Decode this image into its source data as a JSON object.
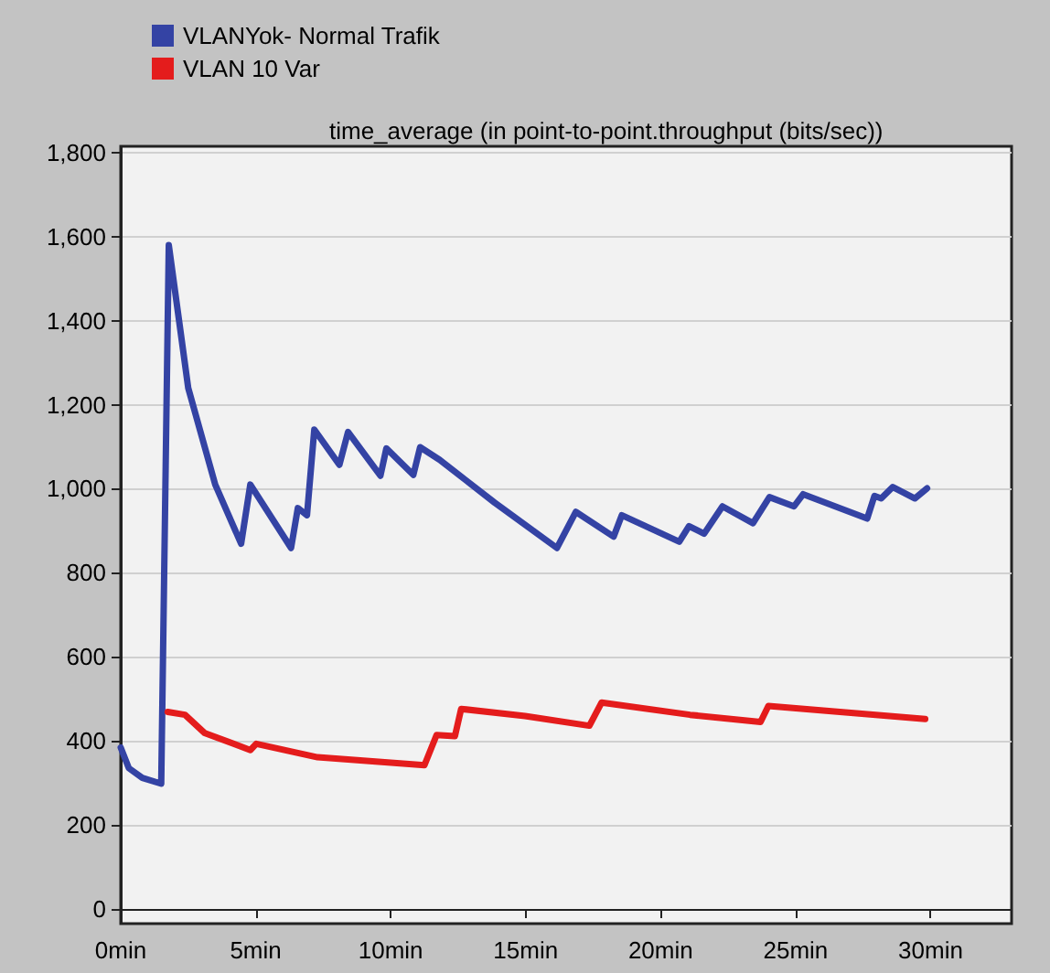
{
  "chart_data": {
    "type": "line",
    "title": "time_average (in point-to-point.throughput (bits/sec))",
    "xlim": [
      0,
      33
    ],
    "xticks": [
      {
        "value": 0,
        "label": "0min"
      },
      {
        "value": 5,
        "label": "5min"
      },
      {
        "value": 10,
        "label": "10min"
      },
      {
        "value": 15,
        "label": "15min"
      },
      {
        "value": 20,
        "label": "20min"
      },
      {
        "value": 25,
        "label": "25min"
      },
      {
        "value": 30,
        "label": "30min"
      }
    ],
    "ylim": [
      -35,
      1815
    ],
    "yticks": [
      {
        "value": 0,
        "label": "0"
      },
      {
        "value": 200,
        "label": "200"
      },
      {
        "value": 400,
        "label": "400"
      },
      {
        "value": 600,
        "label": "600"
      },
      {
        "value": 800,
        "label": "800"
      },
      {
        "value": 1000,
        "label": "1,000"
      },
      {
        "value": 1200,
        "label": "1,200"
      },
      {
        "value": 1400,
        "label": "1,400"
      },
      {
        "value": 1600,
        "label": "1,600"
      },
      {
        "value": 1800,
        "label": "1,800"
      }
    ],
    "grid": "y",
    "legend": "top left",
    "marker": "none",
    "line_style": "solid",
    "series": [
      {
        "name": "VLANYok- Normal Trafik",
        "color": "#3443a4",
        "x": [
          0,
          0.3,
          0.8,
          1.5,
          1.78,
          2.5,
          3.5,
          4.46,
          4.8,
          6.31,
          6.56,
          6.9,
          7.17,
          8.1,
          8.42,
          9.62,
          9.84,
          10.84,
          11.09,
          11.81,
          13.85,
          16.16,
          16.86,
          18.26,
          18.56,
          20.69,
          21.05,
          21.61,
          22.29,
          23.42,
          24.03,
          24.94,
          25.28,
          27.65,
          27.92,
          28.17,
          28.6,
          29.42,
          29.87
        ],
        "values": [
          384,
          335,
          312,
          298,
          1580,
          1240,
          1010,
          869,
          1010,
          859,
          954,
          937,
          1141,
          1057,
          1135,
          1031,
          1096,
          1033,
          1099,
          1069,
          967,
          859,
          945,
          886,
          937,
          874,
          911,
          893,
          958,
          918,
          980,
          958,
          987,
          929,
          983,
          977,
          1004,
          977,
          1001
        ]
      },
      {
        "name": "VLAN 10 Var",
        "color": "#e41c1c",
        "x": [
          1.74,
          2.38,
          3.1,
          4.8,
          5.02,
          7.29,
          11.25,
          11.7,
          12.38,
          12.61,
          14.98,
          17.36,
          17.81,
          21.09,
          23.7,
          23.99,
          29.8
        ],
        "values": [
          469,
          462,
          419,
          378,
          393,
          361,
          342,
          414,
          411,
          476,
          459,
          436,
          491,
          462,
          445,
          483,
          452
        ]
      }
    ]
  }
}
